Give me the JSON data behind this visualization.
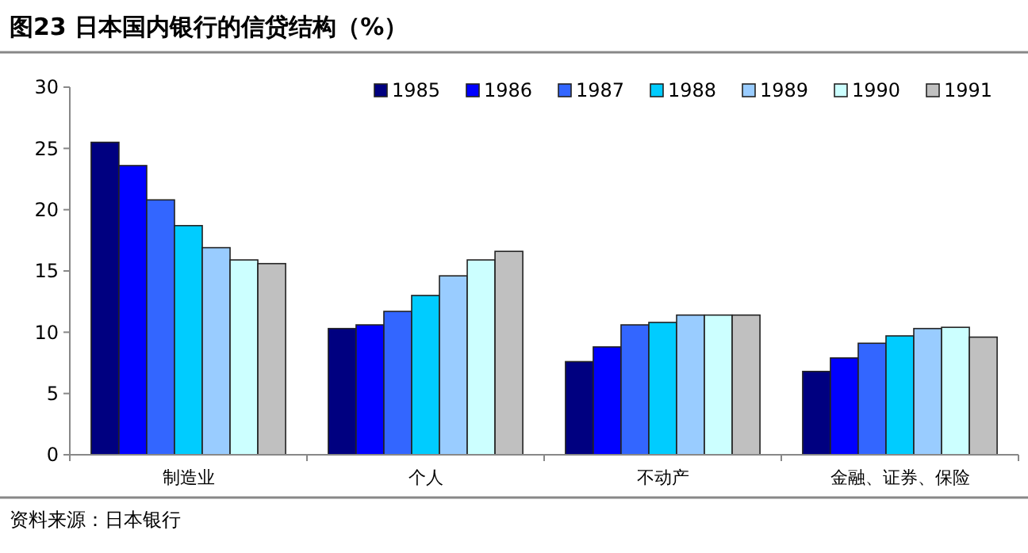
{
  "chart_data": {
    "type": "bar",
    "title": "图23 日本国内银行的信贷结构（%）",
    "categories": [
      "制造业",
      "个人",
      "不动产",
      "金融、证券、保险"
    ],
    "series": [
      {
        "name": "1985",
        "color": "#000080",
        "values": [
          25.5,
          10.3,
          7.6,
          6.8
        ]
      },
      {
        "name": "1986",
        "color": "#0000ff",
        "values": [
          23.6,
          10.6,
          8.8,
          7.9
        ]
      },
      {
        "name": "1987",
        "color": "#3366ff",
        "values": [
          20.8,
          11.7,
          10.6,
          9.1
        ]
      },
      {
        "name": "1988",
        "color": "#00ccff",
        "values": [
          18.7,
          13.0,
          10.8,
          9.7
        ]
      },
      {
        "name": "1989",
        "color": "#99ccff",
        "values": [
          16.9,
          14.6,
          11.4,
          10.3
        ]
      },
      {
        "name": "1990",
        "color": "#ccffff",
        "values": [
          15.9,
          15.9,
          11.4,
          10.4
        ]
      },
      {
        "name": "1991",
        "color": "#c0c0c0",
        "values": [
          15.6,
          16.6,
          11.4,
          9.6
        ]
      }
    ],
    "ylim": [
      0,
      30
    ],
    "yticks": [
      0,
      5,
      10,
      15,
      20,
      25,
      30
    ],
    "grid": false,
    "legend": "top right",
    "annotations": [
      "资料来源：日本银行"
    ]
  }
}
